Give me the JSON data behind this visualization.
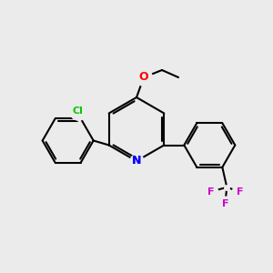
{
  "background_color": "#ebebeb",
  "bond_color": "#000000",
  "atom_colors": {
    "N": "#0000ff",
    "O": "#ff0000",
    "Cl": "#00cc00",
    "F": "#cc00cc"
  },
  "bond_width": 1.5,
  "figsize": [
    3.0,
    3.0
  ],
  "dpi": 100
}
